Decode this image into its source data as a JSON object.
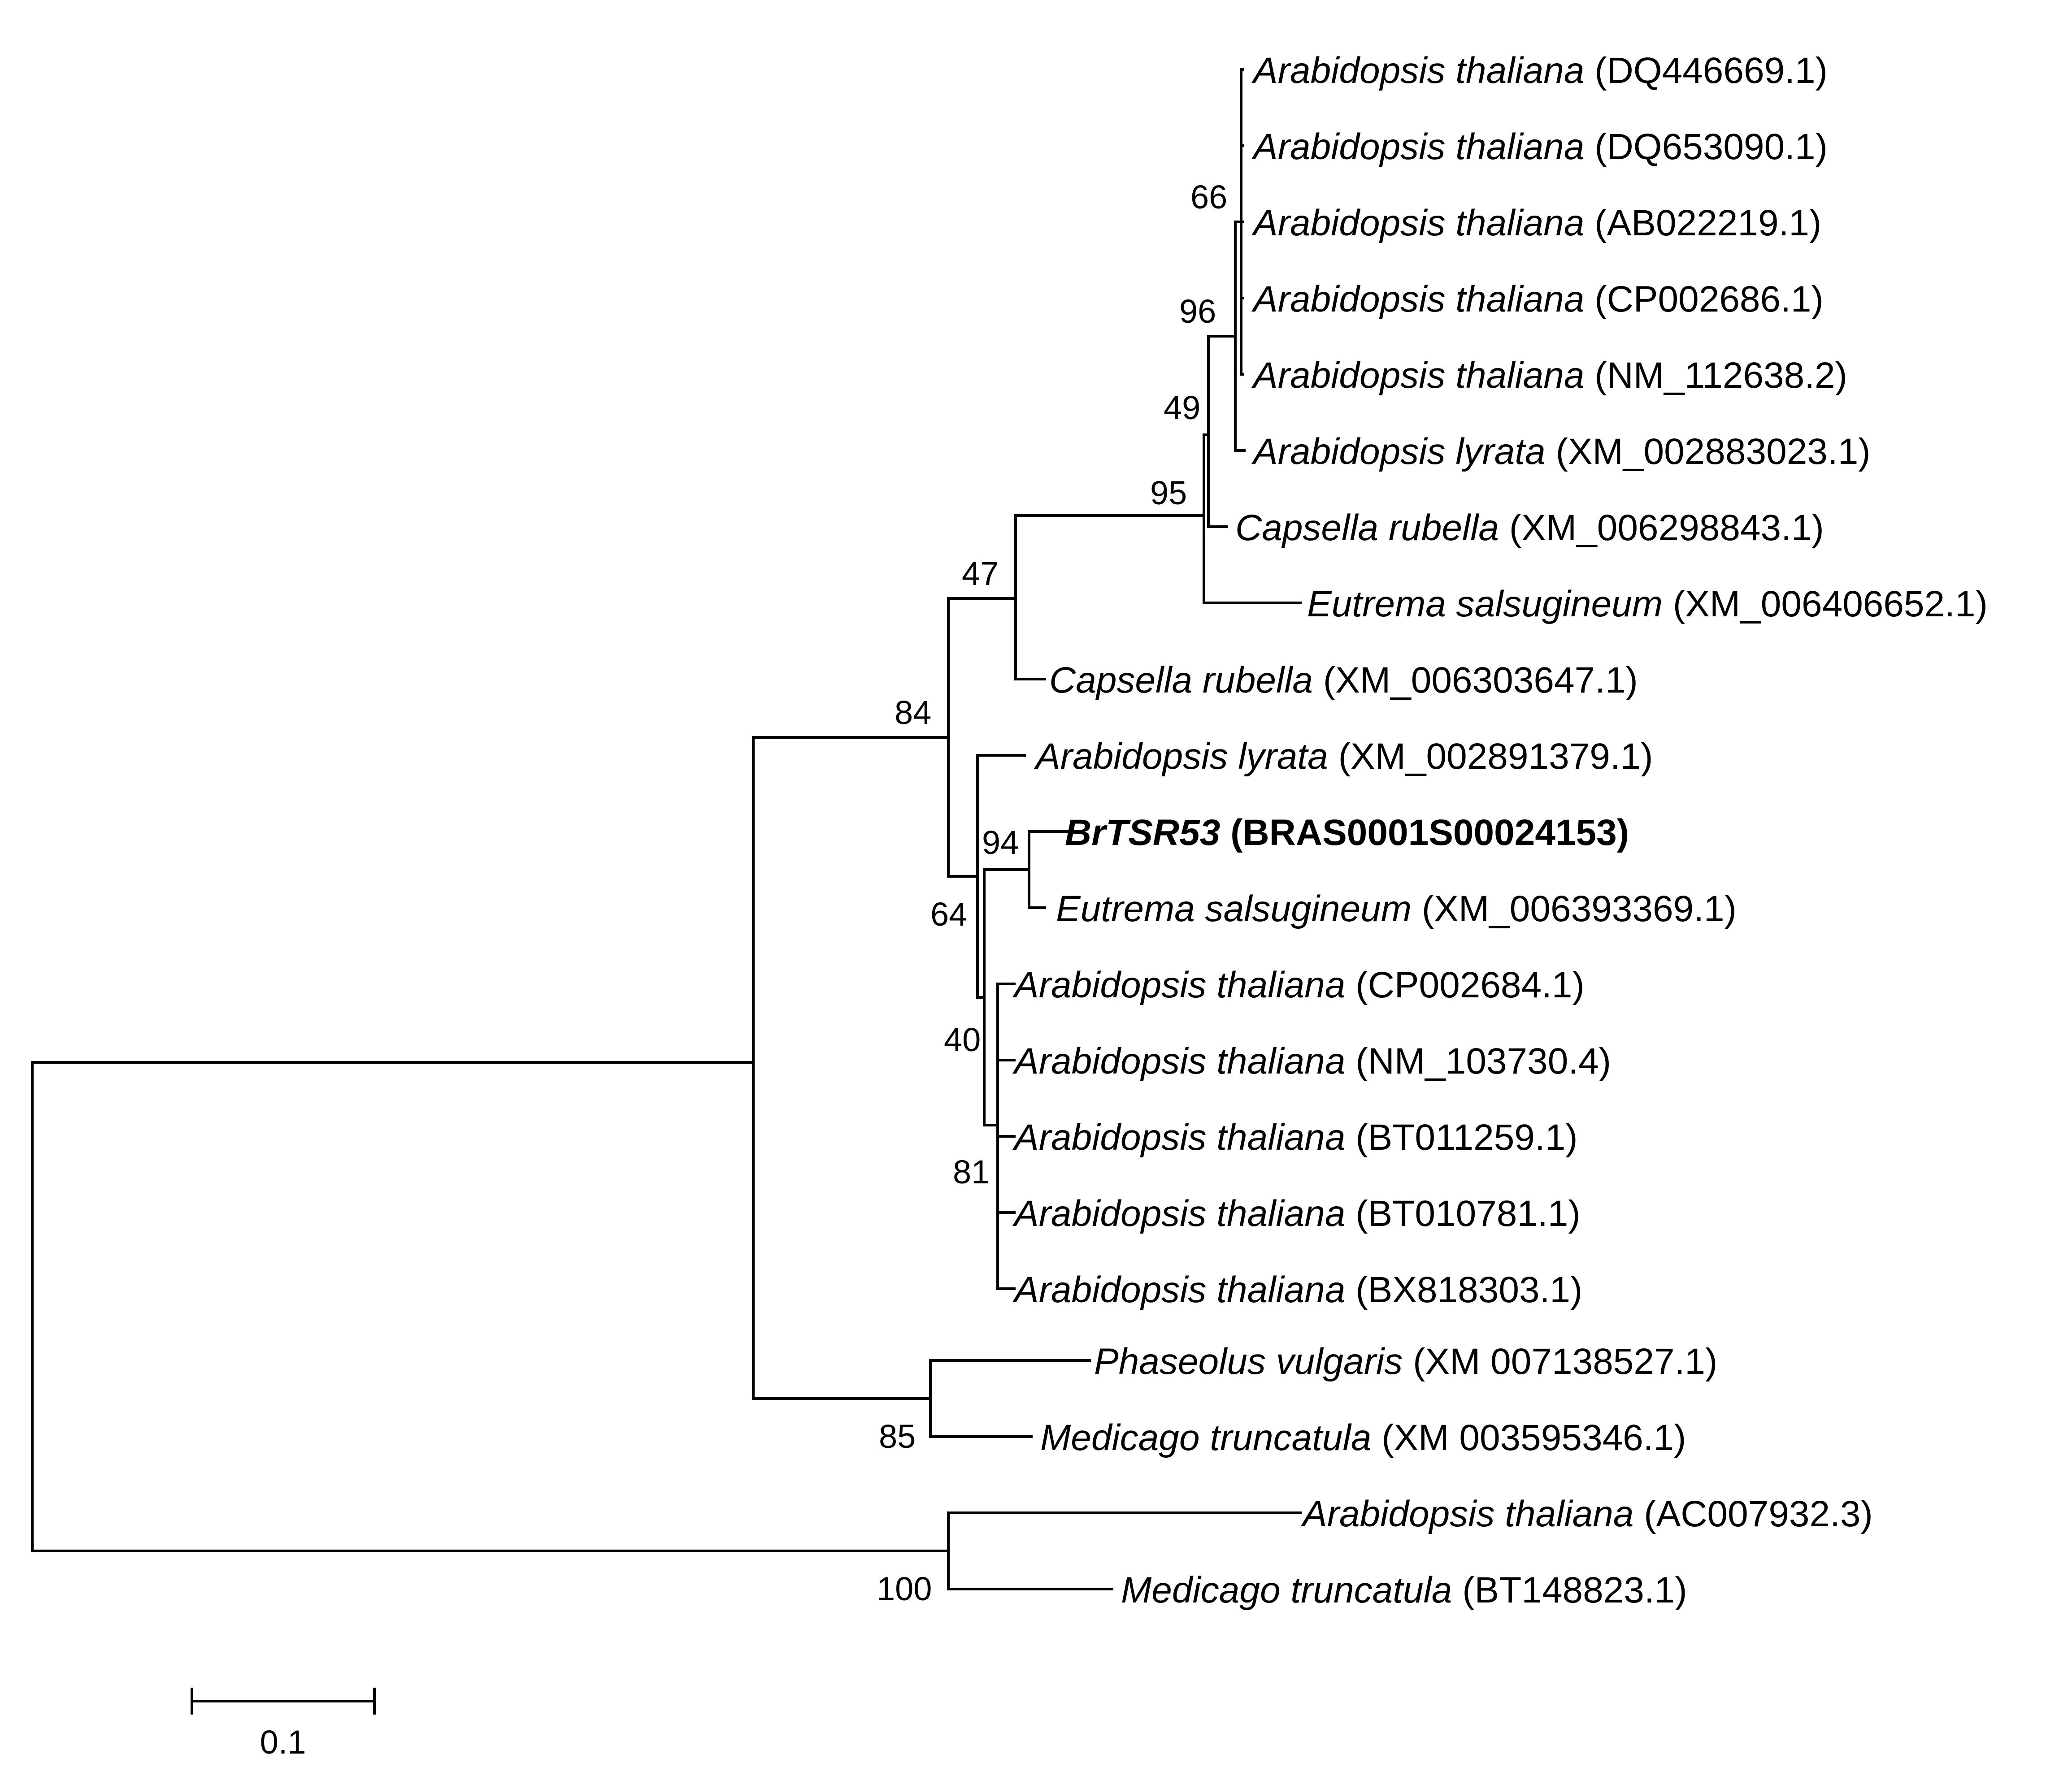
{
  "tree": {
    "leaves": [
      {
        "id": "L1",
        "species": "Arabidopsis thaliana",
        "accession": "(DQ446669.1)"
      },
      {
        "id": "L2",
        "species": "Arabidopsis thaliana",
        "accession": "(DQ653090.1)"
      },
      {
        "id": "L3",
        "species": "Arabidopsis thaliana",
        "accession": "(AB022219.1)"
      },
      {
        "id": "L4",
        "species": "Arabidopsis thaliana",
        "accession": "(CP002686.1)"
      },
      {
        "id": "L5",
        "species": "Arabidopsis thaliana",
        "accession": "(NM_112638.2)"
      },
      {
        "id": "L6",
        "species": "Arabidopsis lyrata",
        "accession": "(XM_002883023.1)"
      },
      {
        "id": "L7",
        "species": "Capsella rubella",
        "accession": "(XM_006298843.1)"
      },
      {
        "id": "L8",
        "species": "Eutrema salsugineum",
        "accession": "(XM_006406652.1)"
      },
      {
        "id": "L9",
        "species": "Capsella rubella",
        "accession": "(XM_006303647.1)"
      },
      {
        "id": "L10",
        "species": "Arabidopsis lyrata",
        "accession": "(XM_002891379.1)"
      },
      {
        "id": "L11",
        "species": "BrTSR53",
        "accession": "(BRAS0001S00024153)",
        "highlight": true
      },
      {
        "id": "L12",
        "species": "Eutrema salsugineum",
        "accession": "(XM_006393369.1)"
      },
      {
        "id": "L13",
        "species": "Arabidopsis thaliana",
        "accession": "(CP002684.1)"
      },
      {
        "id": "L14",
        "species": "Arabidopsis thaliana",
        "accession": "(NM_103730.4)"
      },
      {
        "id": "L15",
        "species": "Arabidopsis thaliana",
        "accession": "(BT011259.1)"
      },
      {
        "id": "L16",
        "species": "Arabidopsis thaliana",
        "accession": "(BT010781.1)"
      },
      {
        "id": "L17",
        "species": "Arabidopsis thaliana",
        "accession": "(BX818303.1)"
      },
      {
        "id": "L18",
        "species": "Phaseolus vulgaris",
        "accession": "(XM 007138527.1)"
      },
      {
        "id": "L19",
        "species": "Medicago truncatula",
        "accession": "(XM 003595346.1)"
      },
      {
        "id": "L20",
        "species": "Arabidopsis thaliana",
        "accession": "(AC007932.3)"
      },
      {
        "id": "L21",
        "species": "Medicago truncatula",
        "accession": "(BT148823.1)"
      }
    ],
    "bootstrap": [
      {
        "node": "n66",
        "value": "66"
      },
      {
        "node": "n96",
        "value": "96"
      },
      {
        "node": "n49",
        "value": "49"
      },
      {
        "node": "n95",
        "value": "95"
      },
      {
        "node": "n47",
        "value": "47"
      },
      {
        "node": "n84",
        "value": "84"
      },
      {
        "node": "n94",
        "value": "94"
      },
      {
        "node": "n64",
        "value": "64"
      },
      {
        "node": "n40",
        "value": "40"
      },
      {
        "node": "n81",
        "value": "81"
      },
      {
        "node": "n85",
        "value": "85"
      },
      {
        "node": "n100",
        "value": "100"
      }
    ],
    "scale_bar": {
      "label": "0.1"
    }
  }
}
